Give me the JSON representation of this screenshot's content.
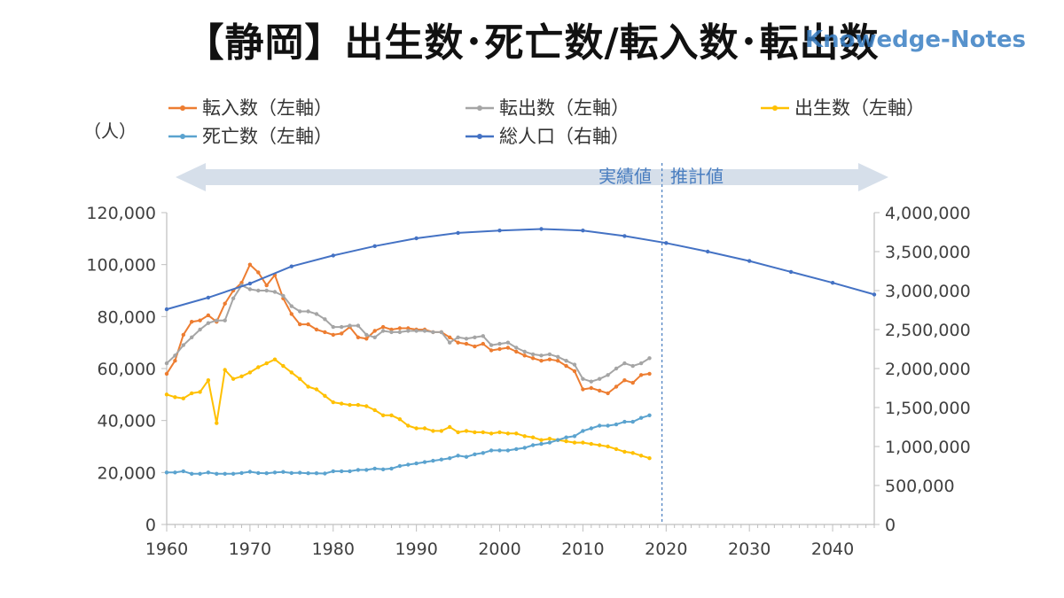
{
  "title": "【静岡】出生数･死亡数/転入数･転出数",
  "watermark": "Knowedge-Notes",
  "chart_data": {
    "type": "line",
    "left_unit": "（人）",
    "left_axis": {
      "min": 0,
      "max": 120000,
      "ticks": [
        "0",
        "20,000",
        "40,000",
        "60,000",
        "80,000",
        "100,000",
        "120,000"
      ]
    },
    "right_axis": {
      "min": 0,
      "max": 4000000,
      "ticks": [
        "0",
        "500,000",
        "1,000,000",
        "1,500,000",
        "2,000,000",
        "2,500,000",
        "3,000,000",
        "3,500,000",
        "4,000,000"
      ]
    },
    "x_axis": {
      "min": 1960,
      "max": 2045,
      "ticks": [
        "1960",
        "1970",
        "1980",
        "1990",
        "2000",
        "2010",
        "2020",
        "2030",
        "2040"
      ]
    },
    "divider_year": 2019,
    "actual_label": "実績値",
    "forecast_label": "推計値",
    "legend_placement": "top",
    "series": [
      {
        "name": "転入数（左軸）",
        "axis": "left",
        "color": "#ed7d31",
        "x": [
          1960,
          1961,
          1962,
          1963,
          1964,
          1965,
          1966,
          1967,
          1968,
          1969,
          1970,
          1971,
          1972,
          1973,
          1974,
          1975,
          1976,
          1977,
          1978,
          1979,
          1980,
          1981,
          1982,
          1983,
          1984,
          1985,
          1986,
          1987,
          1988,
          1989,
          1990,
          1991,
          1992,
          1993,
          1994,
          1995,
          1996,
          1997,
          1998,
          1999,
          2000,
          2001,
          2002,
          2003,
          2004,
          2005,
          2006,
          2007,
          2008,
          2009,
          2010,
          2011,
          2012,
          2013,
          2014,
          2015,
          2016,
          2017,
          2018
        ],
        "y": [
          58000,
          63000,
          73000,
          78000,
          78500,
          80500,
          78000,
          85000,
          90000,
          93000,
          100000,
          97000,
          92000,
          96000,
          87000,
          81000,
          77000,
          77000,
          75000,
          74000,
          73000,
          73500,
          76000,
          72000,
          71500,
          74500,
          76000,
          75000,
          75500,
          75500,
          75000,
          75000,
          74000,
          74000,
          72000,
          70000,
          69500,
          68500,
          69500,
          67000,
          67500,
          68000,
          66500,
          65000,
          64000,
          63000,
          63500,
          63000,
          61000,
          59000,
          52000,
          52500,
          51500,
          50500,
          53000,
          55500,
          54500,
          57500,
          58000
        ]
      },
      {
        "name": "転出数（左軸）",
        "axis": "left",
        "color": "#a5a5a5",
        "x": [
          1960,
          1961,
          1962,
          1963,
          1964,
          1965,
          1966,
          1967,
          1968,
          1969,
          1970,
          1971,
          1972,
          1973,
          1974,
          1975,
          1976,
          1977,
          1978,
          1979,
          1980,
          1981,
          1982,
          1983,
          1984,
          1985,
          1986,
          1987,
          1988,
          1989,
          1990,
          1991,
          1992,
          1993,
          1994,
          1995,
          1996,
          1997,
          1998,
          1999,
          2000,
          2001,
          2002,
          2003,
          2004,
          2005,
          2006,
          2007,
          2008,
          2009,
          2010,
          2011,
          2012,
          2013,
          2014,
          2015,
          2016,
          2017,
          2018
        ],
        "y": [
          62000,
          65000,
          69000,
          72000,
          75000,
          77500,
          78500,
          78500,
          87000,
          92000,
          90500,
          90000,
          90000,
          89500,
          88000,
          84000,
          82000,
          82000,
          81000,
          79000,
          76000,
          76000,
          76500,
          76500,
          73000,
          72000,
          74500,
          74000,
          74000,
          74500,
          74500,
          74500,
          74000,
          74000,
          70000,
          72000,
          71500,
          72000,
          72500,
          69000,
          69500,
          70000,
          68000,
          66500,
          65500,
          65000,
          65500,
          64500,
          63000,
          61500,
          56000,
          55000,
          56000,
          57500,
          60000,
          62000,
          61000,
          62000,
          64000
        ]
      },
      {
        "name": "出生数（左軸）",
        "axis": "left",
        "color": "#ffc000",
        "x": [
          1960,
          1961,
          1962,
          1963,
          1964,
          1965,
          1966,
          1967,
          1968,
          1969,
          1970,
          1971,
          1972,
          1973,
          1974,
          1975,
          1976,
          1977,
          1978,
          1979,
          1980,
          1981,
          1982,
          1983,
          1984,
          1985,
          1986,
          1987,
          1988,
          1989,
          1990,
          1991,
          1992,
          1993,
          1994,
          1995,
          1996,
          1997,
          1998,
          1999,
          2000,
          2001,
          2002,
          2003,
          2004,
          2005,
          2006,
          2007,
          2008,
          2009,
          2010,
          2011,
          2012,
          2013,
          2014,
          2015,
          2016,
          2017,
          2018
        ],
        "y": [
          50000,
          49000,
          48500,
          50500,
          51000,
          55500,
          39000,
          59500,
          56000,
          57000,
          58500,
          60500,
          62000,
          63500,
          61000,
          58500,
          56000,
          53000,
          52000,
          49500,
          47000,
          46500,
          46000,
          46000,
          45500,
          44000,
          42000,
          42000,
          40500,
          38000,
          37000,
          37000,
          36000,
          36000,
          37500,
          35500,
          36000,
          35500,
          35500,
          35000,
          35500,
          35000,
          35000,
          34000,
          33500,
          32500,
          33000,
          32500,
          32000,
          31500,
          31500,
          31000,
          30500,
          30000,
          29000,
          28000,
          27500,
          26500,
          25500
        ]
      },
      {
        "name": "死亡数（左軸）",
        "axis": "left",
        "color": "#5ba3cf",
        "x": [
          1960,
          1961,
          1962,
          1963,
          1964,
          1965,
          1966,
          1967,
          1968,
          1969,
          1970,
          1971,
          1972,
          1973,
          1974,
          1975,
          1976,
          1977,
          1978,
          1979,
          1980,
          1981,
          1982,
          1983,
          1984,
          1985,
          1986,
          1987,
          1988,
          1989,
          1990,
          1991,
          1992,
          1993,
          1994,
          1995,
          1996,
          1997,
          1998,
          1999,
          2000,
          2001,
          2002,
          2003,
          2004,
          2005,
          2006,
          2007,
          2008,
          2009,
          2010,
          2011,
          2012,
          2013,
          2014,
          2015,
          2016,
          2017,
          2018
        ],
        "y": [
          20000,
          20000,
          20500,
          19500,
          19500,
          20000,
          19500,
          19500,
          19500,
          19800,
          20300,
          19800,
          19700,
          20000,
          20200,
          19800,
          19900,
          19700,
          19700,
          19600,
          20500,
          20500,
          20500,
          21000,
          21000,
          21500,
          21200,
          21500,
          22500,
          23000,
          23500,
          24000,
          24500,
          25000,
          25500,
          26500,
          26000,
          27000,
          27500,
          28500,
          28500,
          28500,
          29000,
          29500,
          30500,
          31000,
          31500,
          32500,
          33500,
          34000,
          36000,
          37000,
          38000,
          38000,
          38500,
          39500,
          39500,
          41000,
          42000
        ]
      },
      {
        "name": "総人口（右軸）",
        "axis": "right",
        "color": "#4472c4",
        "x": [
          1960,
          1965,
          1970,
          1975,
          1980,
          1985,
          1990,
          1995,
          2000,
          2005,
          2010,
          2015,
          2020,
          2025,
          2030,
          2035,
          2040,
          2045
        ],
        "y": [
          2760000,
          2910000,
          3090000,
          3310000,
          3450000,
          3570000,
          3670000,
          3740000,
          3770000,
          3790000,
          3770000,
          3700000,
          3610000,
          3500000,
          3380000,
          3240000,
          3100000,
          2950000
        ]
      }
    ]
  }
}
